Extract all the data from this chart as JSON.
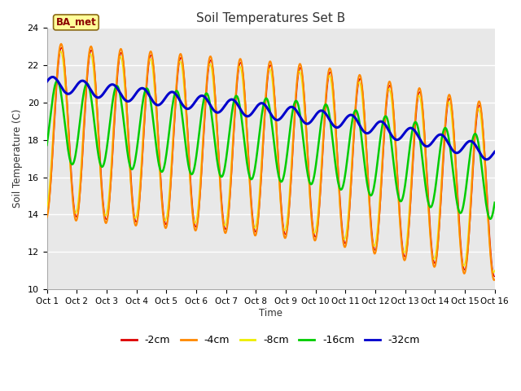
{
  "title": "Soil Temperatures Set B",
  "xlabel": "Time",
  "ylabel": "Soil Temperature (C)",
  "ylim": [
    10,
    24
  ],
  "xlim": [
    0,
    15
  ],
  "xtick_labels": [
    "Oct 1",
    "Oct 2",
    "Oct 3",
    "Oct 4",
    "Oct 5",
    "Oct 6",
    "Oct 7",
    "Oct 8",
    "Oct 9",
    "Oct 10",
    "Oct 11",
    "Oct 12",
    "Oct 13",
    "Oct 14",
    "Oct 15",
    "Oct 16"
  ],
  "ytick_values": [
    10,
    12,
    14,
    16,
    18,
    20,
    22,
    24
  ],
  "colors": {
    "-2cm": "#dd0000",
    "-4cm": "#ff8800",
    "-8cm": "#eeee00",
    "-16cm": "#00cc00",
    "-32cm": "#0000cc"
  },
  "linewidths": {
    "-2cm": 1.0,
    "-4cm": 1.5,
    "-8cm": 1.0,
    "-16cm": 1.8,
    "-32cm": 2.2
  },
  "label_box": "BA_met",
  "fig_bg": "#ffffff",
  "plot_bg": "#e8e8e8",
  "grid_color": "#ffffff",
  "n_points": 720,
  "period_days": 1.0
}
